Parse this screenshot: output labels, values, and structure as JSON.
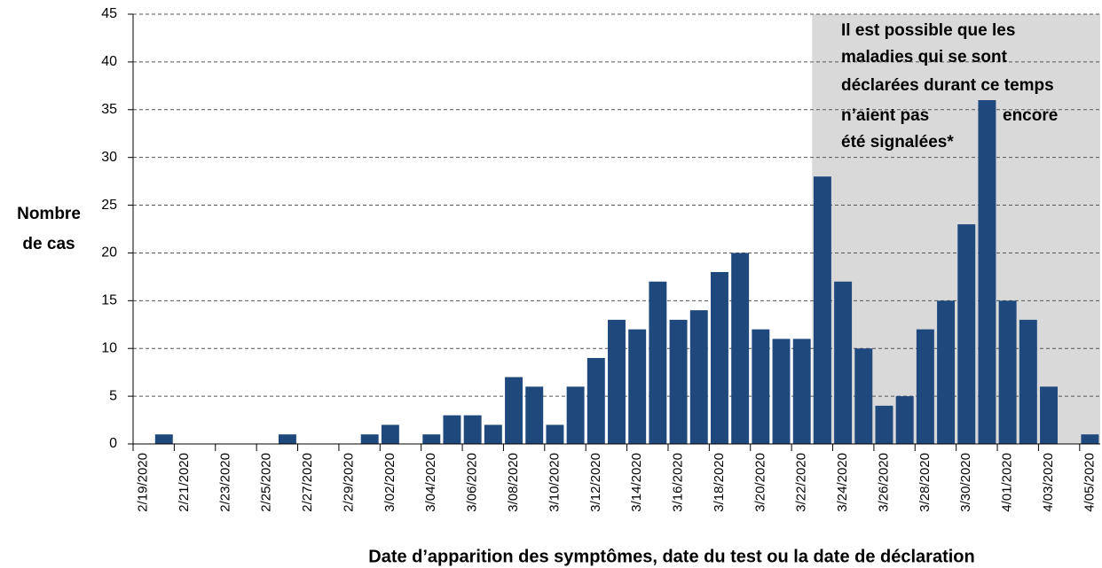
{
  "chart_data": {
    "type": "bar",
    "categories": [
      "2/19/2020",
      null,
      "2/21/2020",
      null,
      "2/23/2020",
      null,
      "2/25/2020",
      null,
      "2/27/2020",
      null,
      "2/29/2020",
      null,
      "3/02/2020",
      null,
      "3/04/2020",
      null,
      "3/06/2020",
      null,
      "3/08/2020",
      null,
      "3/10/2020",
      null,
      "3/12/2020",
      null,
      "3/14/2020",
      null,
      "3/16/2020",
      null,
      "3/18/2020",
      null,
      "3/20/2020",
      null,
      "3/22/2020",
      null,
      "3/24/2020",
      null,
      "3/26/2020",
      null,
      "3/28/2020",
      null,
      "3/30/2020",
      null,
      "4/01/2020",
      null,
      "4/03/2020",
      null,
      "4/05/2020"
    ],
    "values": [
      0,
      1,
      0,
      0,
      0,
      0,
      0,
      1,
      0,
      0,
      0,
      1,
      2,
      0,
      1,
      3,
      3,
      2,
      7,
      6,
      2,
      6,
      9,
      13,
      12,
      17,
      13,
      14,
      18,
      20,
      12,
      11,
      11,
      28,
      17,
      10,
      4,
      5,
      12,
      15,
      23,
      36,
      15,
      13,
      6,
      0,
      1
    ],
    "color": "#1f497d",
    "ylim": [
      0,
      45
    ],
    "yticks": [
      0,
      5,
      10,
      15,
      20,
      25,
      30,
      35,
      40,
      45
    ],
    "grid": true,
    "ylabel": [
      "Nombre",
      "de cas"
    ],
    "xlabel": "Date d’apparition des symptômes, date du test ou la date de déclaration",
    "annotation": [
      "Il est possible que les",
      "maladies qui se sont",
      "déclarées durant ce temps",
      "n’aient pas",
      "encore",
      "été signalées*"
    ]
  }
}
